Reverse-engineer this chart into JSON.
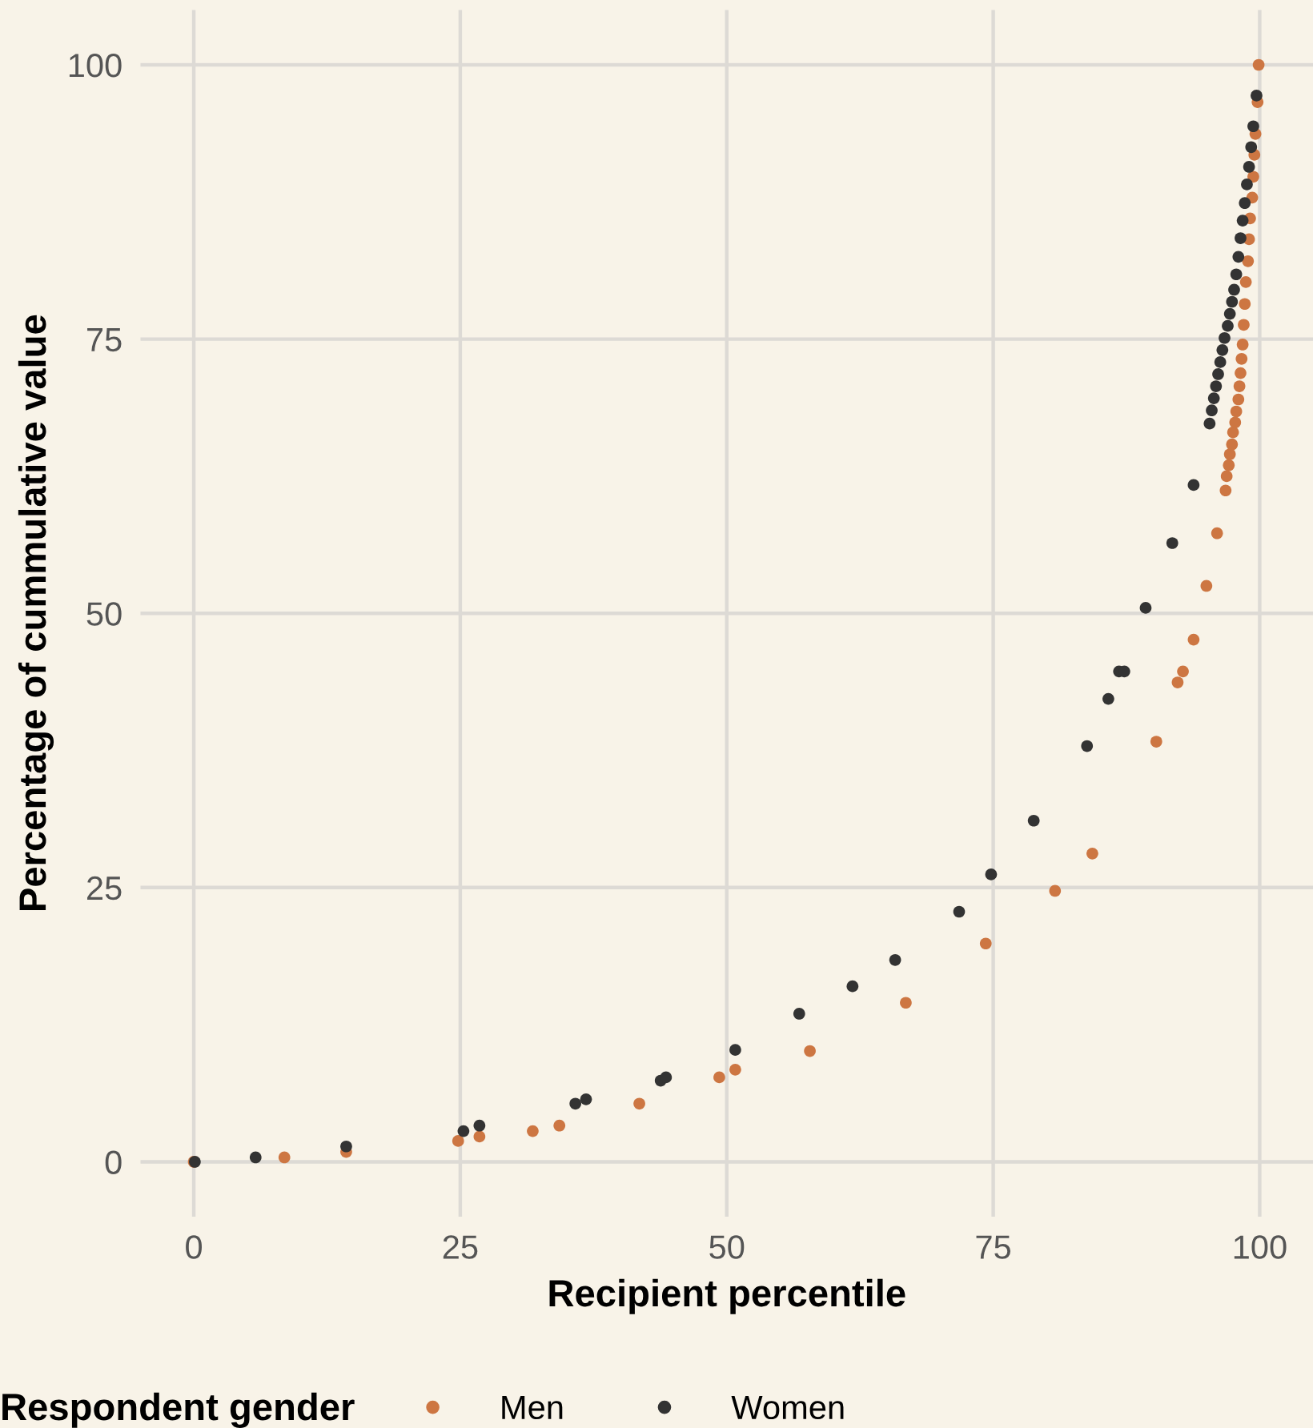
{
  "chart_data": {
    "type": "scatter",
    "xlabel": "Recipient percentile",
    "ylabel": "Percentage of cummulative value",
    "legend_title": "Respondent gender",
    "xlim": [
      -5,
      105
    ],
    "ylim": [
      -5,
      105
    ],
    "xticks": [
      0,
      25,
      50,
      75,
      100
    ],
    "yticks": [
      0,
      25,
      50,
      75,
      100
    ],
    "grid": true,
    "legend": "bottom",
    "marker": "circle",
    "series": [
      {
        "name": "Men",
        "color": "#cd7642",
        "x": [
          0,
          8.5,
          14.3,
          24.8,
          26.8,
          31.8,
          34.3,
          41.8,
          49.3,
          50.8,
          57.8,
          66.8,
          74.3,
          80.8,
          84.3,
          90.3,
          92.3,
          92.8,
          93.8,
          95.0,
          96.0,
          96.8,
          96.9,
          97.1,
          97.2,
          97.4,
          97.5,
          97.7,
          97.8,
          98.0,
          98.1,
          98.2,
          98.3,
          98.4,
          98.5,
          98.6,
          98.7,
          98.9,
          99.0,
          99.1,
          99.3,
          99.4,
          99.5,
          99.6,
          99.8,
          99.9
        ],
        "values": [
          0,
          0.4,
          0.9,
          1.9,
          2.3,
          2.8,
          3.3,
          5.3,
          7.7,
          8.4,
          10.1,
          14.5,
          19.9,
          24.7,
          28.1,
          38.3,
          43.7,
          44.7,
          47.6,
          52.5,
          57.3,
          61.2,
          62.5,
          63.5,
          64.5,
          65.4,
          66.5,
          67.4,
          68.4,
          69.5,
          70.7,
          71.9,
          73.2,
          74.5,
          76.3,
          78.2,
          80.2,
          82.1,
          84.1,
          86.0,
          87.9,
          89.8,
          91.8,
          93.7,
          96.6,
          100
        ]
      },
      {
        "name": "Women",
        "color": "#333333",
        "x": [
          0.1,
          5.8,
          14.3,
          25.3,
          26.8,
          35.8,
          36.8,
          43.8,
          44.3,
          50.8,
          56.8,
          61.8,
          65.8,
          71.8,
          74.8,
          78.8,
          83.8,
          85.8,
          86.8,
          87.3,
          89.3,
          91.8,
          93.8,
          95.3,
          95.5,
          95.7,
          95.9,
          96.1,
          96.3,
          96.5,
          96.7,
          97.0,
          97.2,
          97.4,
          97.6,
          97.8,
          98.0,
          98.2,
          98.4,
          98.6,
          98.8,
          99.0,
          99.2,
          99.4,
          99.7
        ],
        "values": [
          0,
          0.4,
          1.4,
          2.8,
          3.3,
          5.3,
          5.7,
          7.4,
          7.7,
          10.2,
          13.5,
          16.0,
          18.4,
          22.8,
          26.2,
          31.1,
          37.9,
          42.2,
          44.7,
          44.7,
          50.5,
          56.4,
          61.7,
          67.3,
          68.5,
          69.6,
          70.7,
          71.8,
          72.9,
          74.0,
          75.1,
          76.2,
          77.3,
          78.4,
          79.5,
          80.9,
          82.5,
          84.2,
          85.8,
          87.4,
          89.1,
          90.7,
          92.5,
          94.4,
          97.2
        ]
      }
    ]
  }
}
